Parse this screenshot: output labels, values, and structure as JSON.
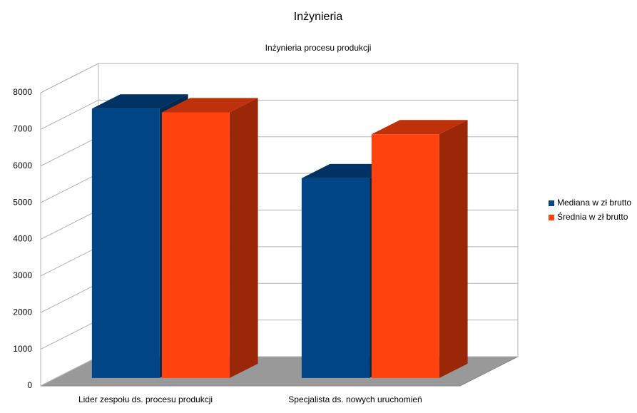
{
  "chart_data": {
    "type": "bar3d",
    "title": "Inżynieria",
    "subtitle": "Inżynieria procesu produkcji",
    "categories": [
      "Lider zespołu ds. procesu produkcji",
      "Specjalista ds. nowych uruchomień"
    ],
    "series": [
      {
        "name": "Mediana w zł brutto",
        "color": "#004586",
        "values": [
          7350,
          5450
        ]
      },
      {
        "name": "Średnia w zł brutto",
        "color": "#ff420e",
        "values": [
          7250,
          6650
        ]
      }
    ],
    "ylim": [
      0,
      8000
    ],
    "yticks": [
      0,
      1000,
      2000,
      3000,
      4000,
      5000,
      6000,
      7000,
      8000
    ],
    "grid": true,
    "legend": "right"
  }
}
